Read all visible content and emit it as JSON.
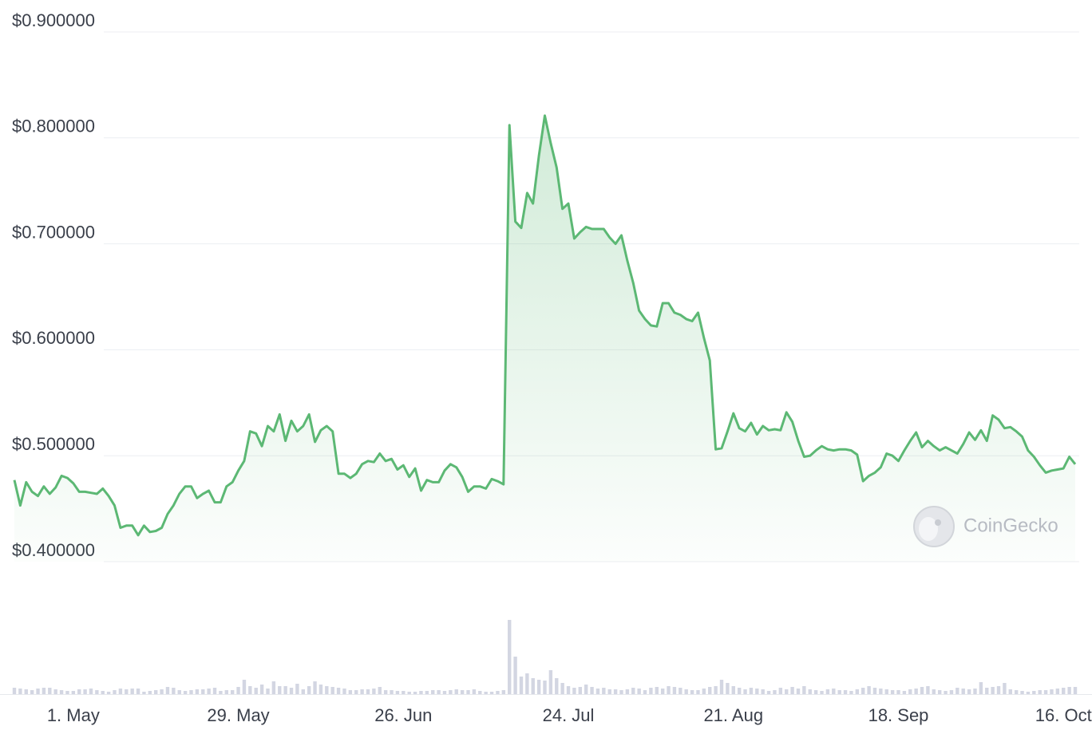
{
  "chart_data": [
    {
      "type": "line",
      "ylim": [
        0.4,
        0.9
      ],
      "yticks": [
        {
          "value": 0.4,
          "label": "$0.400000"
        },
        {
          "value": 0.5,
          "label": "$0.500000"
        },
        {
          "value": 0.6,
          "label": "$0.600000"
        },
        {
          "value": 0.7,
          "label": "$0.700000"
        },
        {
          "value": 0.8,
          "label": "$0.800000"
        },
        {
          "value": 0.9,
          "label": "$0.900000"
        }
      ],
      "grid": true,
      "color": "#5cb874",
      "watermark": "CoinGecko",
      "categories": [
        null,
        null,
        null,
        null,
        null,
        null,
        null,
        null,
        null,
        null,
        "1. May",
        null,
        null,
        null,
        null,
        null,
        null,
        null,
        null,
        null,
        null,
        null,
        null,
        null,
        null,
        null,
        null,
        null,
        null,
        null,
        null,
        null,
        null,
        null,
        null,
        null,
        null,
        null,
        "29. May",
        null,
        null,
        null,
        null,
        null,
        null,
        null,
        null,
        null,
        null,
        null,
        null,
        null,
        null,
        null,
        null,
        null,
        null,
        null,
        null,
        null,
        null,
        null,
        null,
        null,
        null,
        null,
        "26. Jun",
        null,
        null,
        null,
        null,
        null,
        null,
        null,
        null,
        null,
        null,
        null,
        null,
        null,
        null,
        null,
        null,
        null,
        null,
        null,
        null,
        null,
        null,
        null,
        null,
        null,
        null,
        null,
        "24. Jul",
        null,
        null,
        null,
        null,
        null,
        null,
        null,
        null,
        null,
        null,
        null,
        null,
        null,
        null,
        null,
        null,
        null,
        null,
        null,
        null,
        null,
        null,
        null,
        null,
        null,
        null,
        null,
        "21. Aug",
        null,
        null,
        null,
        null,
        null,
        null,
        null,
        null,
        null,
        null,
        null,
        null,
        null,
        null,
        null,
        null,
        null,
        null,
        null,
        null,
        null,
        null,
        null,
        null,
        null,
        null,
        null,
        "18. Sep",
        null,
        null,
        null,
        null,
        null,
        null,
        null,
        null,
        null,
        null,
        null,
        null,
        null,
        null,
        null,
        null,
        null,
        null,
        null,
        null,
        null,
        null,
        null,
        null,
        null,
        null,
        null,
        "16. Oct",
        null,
        null
      ],
      "values": [
        0.477,
        0.453,
        0.475,
        0.466,
        0.462,
        0.471,
        0.464,
        0.47,
        0.481,
        0.479,
        0.474,
        0.466,
        0.466,
        0.465,
        0.464,
        0.469,
        0.462,
        0.453,
        0.432,
        0.434,
        0.434,
        0.425,
        0.434,
        0.428,
        0.429,
        0.432,
        0.445,
        0.453,
        0.464,
        0.471,
        0.471,
        0.46,
        0.464,
        0.467,
        0.456,
        0.456,
        0.471,
        0.475,
        0.486,
        0.495,
        0.523,
        0.521,
        0.509,
        0.528,
        0.523,
        0.539,
        0.514,
        0.533,
        0.523,
        0.528,
        0.539,
        0.513,
        0.524,
        0.528,
        0.523,
        0.483,
        0.483,
        0.479,
        0.483,
        0.492,
        0.495,
        0.494,
        0.502,
        0.495,
        0.497,
        0.487,
        0.491,
        0.48,
        0.488,
        0.467,
        0.477,
        0.475,
        0.475,
        0.486,
        0.492,
        0.489,
        0.48,
        0.466,
        0.471,
        0.471,
        0.469,
        0.478,
        0.476,
        0.473,
        0.812,
        0.721,
        0.715,
        0.748,
        0.738,
        0.783,
        0.821,
        0.795,
        0.772,
        0.733,
        0.738,
        0.705,
        0.711,
        0.716,
        0.714,
        0.714,
        0.714,
        0.706,
        0.7,
        0.708,
        0.684,
        0.663,
        0.637,
        0.629,
        0.623,
        0.622,
        0.644,
        0.644,
        0.635,
        0.633,
        0.629,
        0.627,
        0.635,
        0.611,
        0.59,
        0.506,
        0.507,
        0.523,
        0.54,
        0.526,
        0.523,
        0.531,
        0.52,
        0.528,
        0.524,
        0.525,
        0.524,
        0.541,
        0.532,
        0.514,
        0.499,
        0.5,
        0.505,
        0.509,
        0.506,
        0.505,
        0.506,
        0.506,
        0.505,
        0.501,
        0.476,
        0.481,
        0.484,
        0.489,
        0.502,
        0.5,
        0.495,
        0.505,
        0.514,
        0.522,
        0.508,
        0.514,
        0.509,
        0.505,
        0.508,
        0.505,
        0.502,
        0.511,
        0.522,
        0.515,
        0.524,
        0.514,
        0.538,
        0.534,
        0.526,
        0.527,
        0.523,
        0.518,
        0.505,
        0.499,
        0.491,
        0.484,
        0.486,
        0.487,
        0.488,
        0.499,
        0.492
      ]
    },
    {
      "type": "bar",
      "color": "#d3d6e2",
      "values": [
        8,
        7,
        6,
        5,
        7,
        8,
        8,
        6,
        5,
        4,
        4,
        6,
        6,
        7,
        5,
        4,
        3,
        5,
        7,
        6,
        7,
        7,
        3,
        4,
        5,
        6,
        9,
        8,
        5,
        4,
        5,
        6,
        6,
        7,
        8,
        4,
        5,
        5,
        9,
        18,
        10,
        8,
        12,
        7,
        16,
        10,
        10,
        8,
        13,
        6,
        10,
        16,
        12,
        10,
        9,
        8,
        7,
        5,
        5,
        6,
        6,
        7,
        9,
        5,
        5,
        4,
        4,
        3,
        3,
        4,
        4,
        5,
        5,
        4,
        5,
        6,
        5,
        5,
        6,
        4,
        3,
        3,
        4,
        5,
        93,
        47,
        22,
        26,
        20,
        18,
        17,
        30,
        20,
        14,
        10,
        8,
        9,
        12,
        9,
        7,
        8,
        6,
        6,
        5,
        6,
        8,
        7,
        5,
        8,
        9,
        7,
        10,
        9,
        8,
        6,
        5,
        5,
        7,
        9,
        10,
        18,
        14,
        10,
        8,
        6,
        8,
        7,
        6,
        4,
        5,
        8,
        6,
        9,
        7,
        10,
        6,
        5,
        4,
        6,
        7,
        5,
        5,
        4,
        6,
        8,
        10,
        8,
        7,
        6,
        5,
        5,
        4,
        6,
        7,
        9,
        10,
        6,
        5,
        4,
        5,
        8,
        7,
        6,
        7,
        15,
        8,
        9,
        10,
        14,
        6,
        5,
        4,
        3,
        4,
        5,
        5,
        6,
        7,
        8,
        9,
        9
      ]
    }
  ]
}
